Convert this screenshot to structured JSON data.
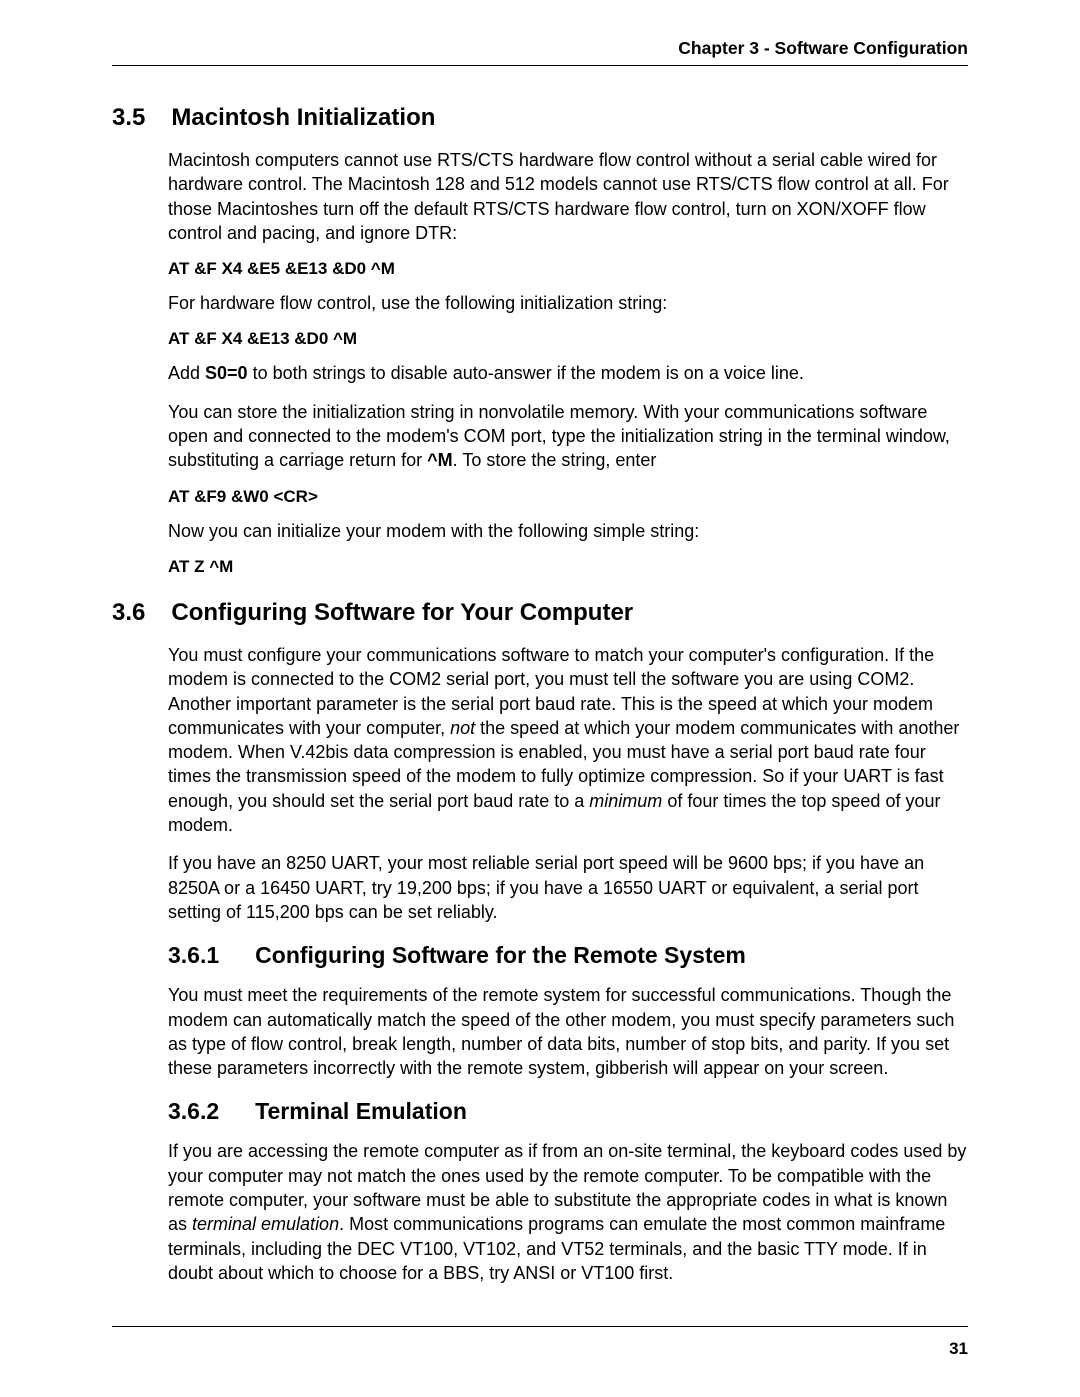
{
  "header": {
    "chapter": "Chapter 3 - Software Configuration"
  },
  "s35": {
    "num": "3.5",
    "title": "Macintosh Initialization",
    "p1": "Macintosh computers cannot use RTS/CTS hardware flow control without a serial cable wired for hardware control. The Macintosh 128 and 512 models cannot use RTS/CTS flow control at all. For those Macintoshes turn off the default RTS/CTS hardware flow control, turn on XON/XOFF flow control and pacing, and ignore DTR:",
    "cmd1": "AT &F X4 &E5 &E13 &D0 ^M",
    "p2": "For hardware flow control, use the following initialization string:",
    "cmd2": "AT &F X4 &E13 &D0 ^M",
    "p3a": "Add ",
    "p3b": "S0=0",
    "p3c": " to both strings to disable auto-answer if the modem is on a voice line.",
    "p4a": "You can store the initialization string in nonvolatile memory. With your communications software open and connected to the modem's COM port, type the initialization string in the terminal window, substituting a carriage return for ",
    "p4b": "^M",
    "p4c": ". To store the string, enter",
    "cmd3": "AT &F9 &W0 <CR>",
    "p5": "Now you can initialize your modem with the following simple string:",
    "cmd4": "AT Z ^M"
  },
  "s36": {
    "num": "3.6",
    "title": "Configuring Software for Your Computer",
    "p1a": "You must configure your communications software to match your computer's configuration. If the modem is connected to the COM2 serial port, you must tell the software you are using COM2. Another important parameter is the serial port baud rate. This is the speed at which your modem communicates with your computer, ",
    "p1b": "not",
    "p1c": " the speed at which your modem communicates with another modem. When V.42bis data compression is enabled, you must have a serial port baud rate four times the transmission speed of the modem to fully optimize compression. So if your UART is fast enough, you should set the serial port baud rate to a ",
    "p1d": "minimum",
    "p1e": " of four times the top speed of your modem.",
    "p2": "If you have an 8250 UART, your most reliable serial port speed will be 9600 bps; if you have an 8250A or a 16450 UART, try 19,200 bps; if you have a 16550 UART or equivalent, a serial port setting of 115,200 bps can be set reliably."
  },
  "s361": {
    "num": "3.6.1",
    "title": "Configuring Software for the Remote System",
    "p1": "You must meet the requirements of the remote system for successful communications. Though the modem can automatically match the speed of the other modem, you must specify parameters such as type of flow control, break length, number of data bits, number of stop bits, and parity. If you set these parameters incorrectly with the remote system, gibberish will appear on your screen."
  },
  "s362": {
    "num": "3.6.2",
    "title": "Terminal Emulation",
    "p1a": "If you are accessing the remote computer as if from an on-site terminal, the keyboard codes used by your computer may not match the ones used by the remote computer. To be compatible with the remote computer, your software must be able to substitute the appropriate codes in what is known as ",
    "p1b": "terminal emulation",
    "p1c": ". Most communications programs can emulate the most common mainframe terminals, including the DEC VT100, VT102, and VT52 terminals, and the basic TTY mode. If in doubt about which to choose for a BBS, try ANSI or VT100 first."
  },
  "footer": {
    "pagenum": "31"
  }
}
